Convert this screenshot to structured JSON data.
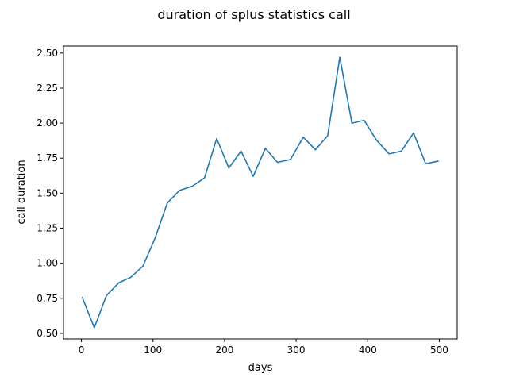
{
  "chart_data": {
    "type": "line",
    "title": "duration of splus statistics call",
    "xlabel": "days",
    "ylabel": "call duration",
    "xlim": [
      -25,
      525
    ],
    "ylim": [
      0.46,
      2.55
    ],
    "xticks": [
      0,
      100,
      200,
      300,
      400,
      500
    ],
    "xtick_labels": [
      "0",
      "100",
      "200",
      "300",
      "400",
      "500"
    ],
    "yticks": [
      0.5,
      0.75,
      1.0,
      1.25,
      1.5,
      1.75,
      2.0,
      2.25,
      2.5
    ],
    "ytick_labels": [
      "0.50",
      "0.75",
      "1.00",
      "1.25",
      "1.50",
      "1.75",
      "2.00",
      "2.25",
      "2.50"
    ],
    "grid": false,
    "line_color": "#1f77b4",
    "series": [
      {
        "x": [
          1,
          18,
          35,
          52,
          69,
          86,
          103,
          120,
          137,
          155,
          172,
          189,
          206,
          223,
          240,
          257,
          274,
          292,
          310,
          327,
          344,
          361,
          378,
          395,
          412,
          430,
          447,
          464,
          481,
          499
        ],
        "y": [
          0.76,
          0.54,
          0.77,
          0.86,
          0.9,
          0.98,
          1.18,
          1.43,
          1.52,
          1.55,
          1.61,
          1.89,
          1.68,
          1.8,
          1.62,
          1.82,
          1.72,
          1.74,
          1.9,
          1.81,
          1.91,
          2.47,
          2.0,
          2.02,
          1.88,
          1.78,
          1.8,
          1.93,
          1.71,
          1.73
        ]
      }
    ]
  }
}
